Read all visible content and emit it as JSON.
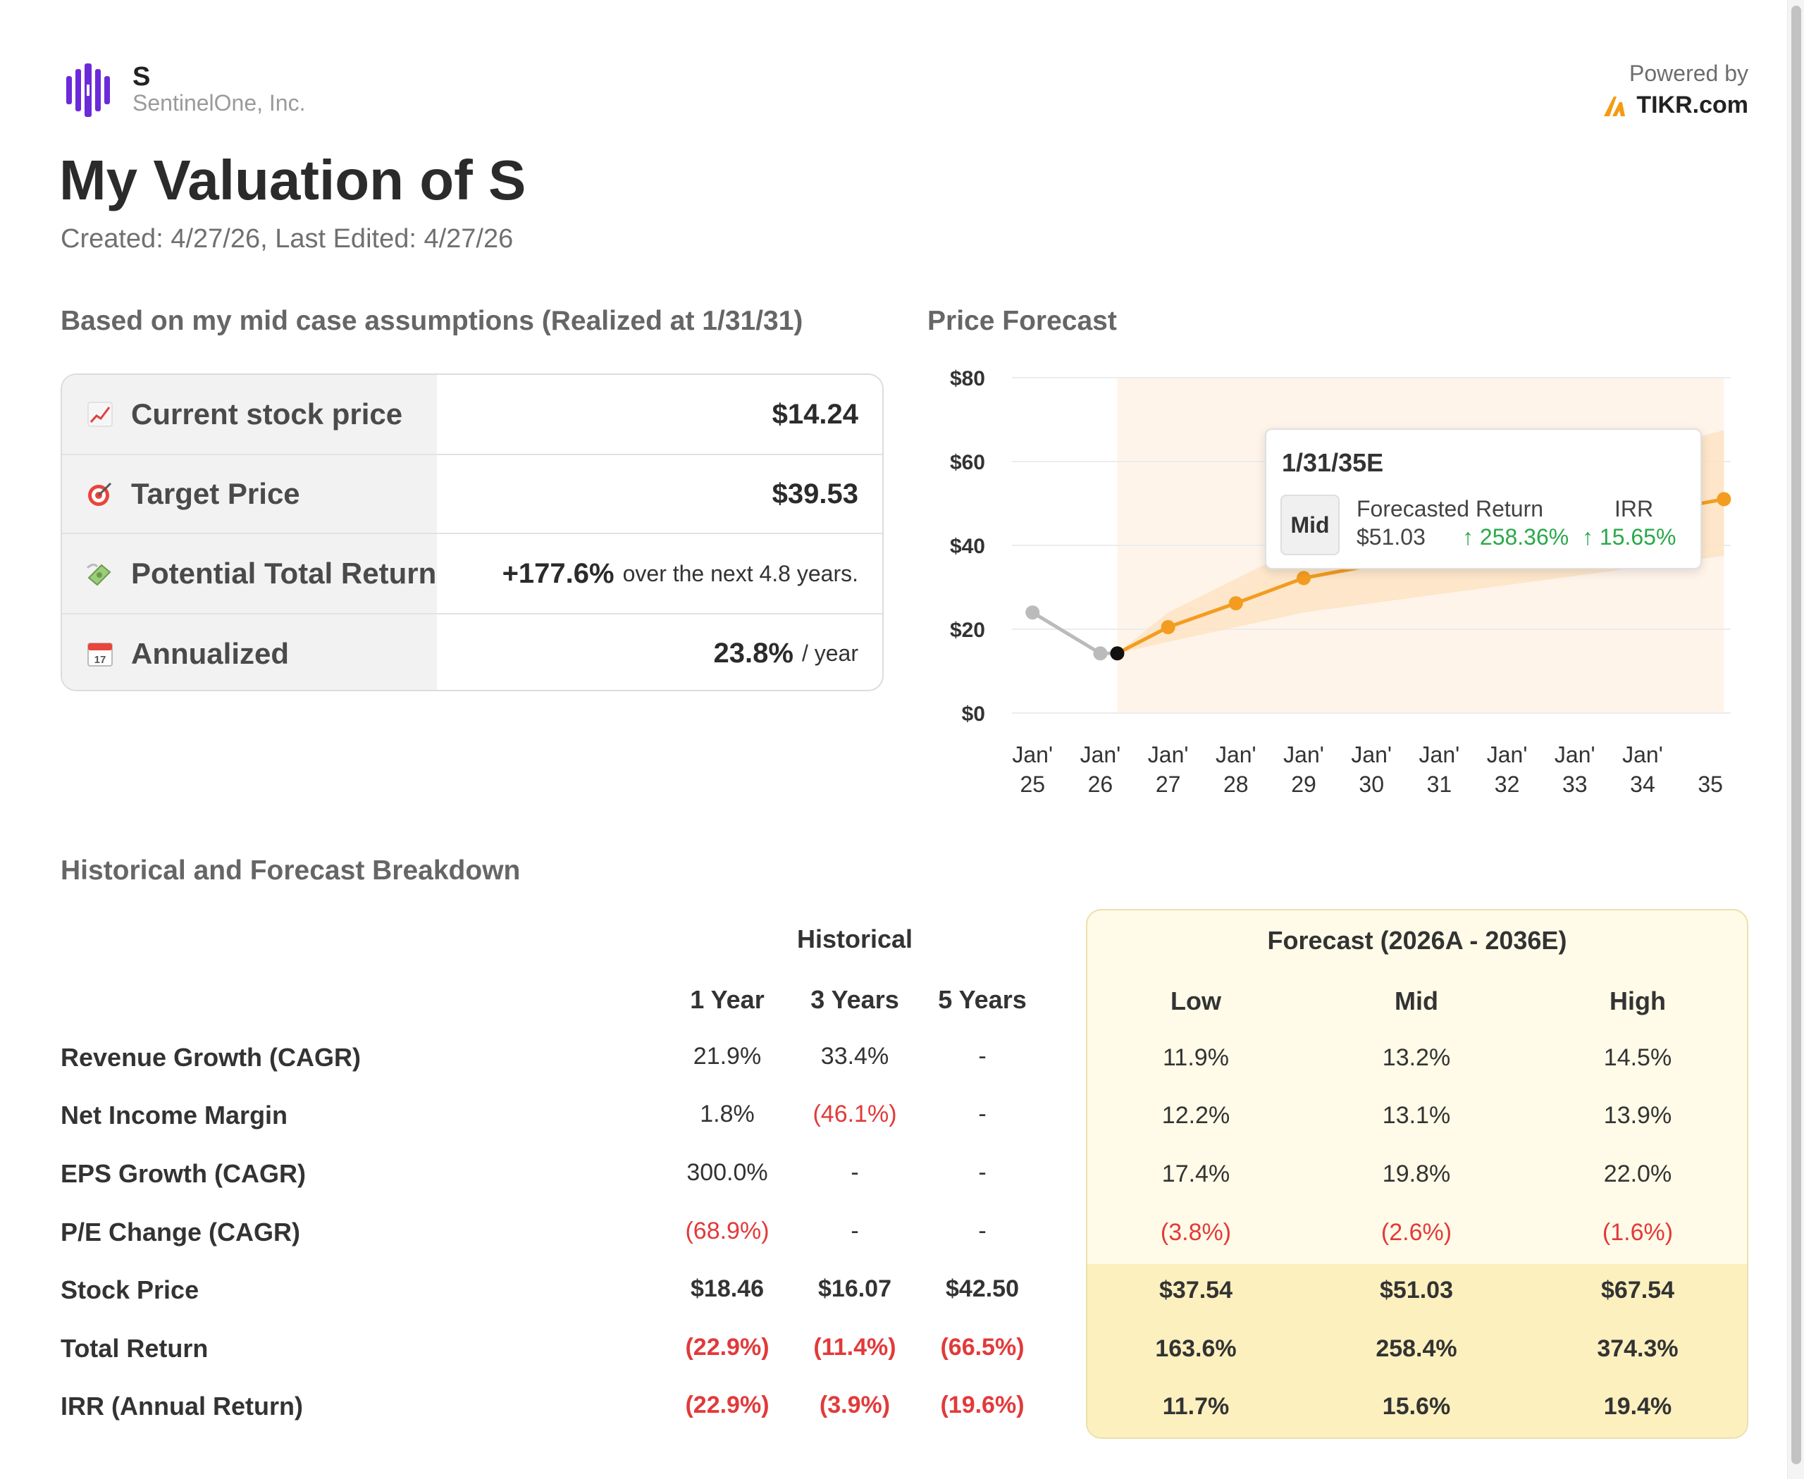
{
  "header": {
    "ticker": "S",
    "company": "SentinelOne, Inc.",
    "powered_by": "Powered by",
    "brand": "TIKR.com",
    "brand_color": "#f39c12",
    "logo_color": "#6b2bd9"
  },
  "page": {
    "title": "My Valuation of S",
    "dates": "Created: 4/27/26, Last Edited: 4/27/26"
  },
  "summary": {
    "heading": "Based on my mid case assumptions (Realized at 1/31/31)",
    "rows": [
      {
        "icon": "chart-increasing-icon",
        "label": "Current stock price",
        "value": "$14.24",
        "suffix": ""
      },
      {
        "icon": "target-icon",
        "label": "Target Price",
        "value": "$39.53",
        "suffix": ""
      },
      {
        "icon": "money-wings-icon",
        "label": "Potential Total Return",
        "value": "+177.6%",
        "suffix": "over the next 4.8 years."
      },
      {
        "icon": "calendar-icon",
        "label": "Annualized",
        "value": "23.8%",
        "suffix": "/ year"
      }
    ]
  },
  "chart_data": {
    "type": "line",
    "title": "Price Forecast",
    "yticks": [
      "$0",
      "$20",
      "$40",
      "$60",
      "$80"
    ],
    "ylim": [
      0,
      80
    ],
    "xticks": [
      {
        "top": "Jan'",
        "bottom": "25"
      },
      {
        "top": "Jan'",
        "bottom": "26"
      },
      {
        "top": "Jan'",
        "bottom": "27"
      },
      {
        "top": "Jan'",
        "bottom": "28"
      },
      {
        "top": "Jan'",
        "bottom": "29"
      },
      {
        "top": "Jan'",
        "bottom": "30"
      },
      {
        "top": "Jan'",
        "bottom": "31"
      },
      {
        "top": "Jan'",
        "bottom": "32"
      },
      {
        "top": "Jan'",
        "bottom": "33"
      },
      {
        "top": "Jan'",
        "bottom": "34"
      },
      {
        "top": "",
        "bottom": "35"
      }
    ],
    "historical": {
      "name": "Historical",
      "color": "#bbbbbb",
      "x": [
        2025.0,
        2026.0
      ],
      "y": [
        24.0,
        14.24
      ]
    },
    "current": {
      "x": 2026.25,
      "y": 14.24,
      "color": "#111111"
    },
    "forecast": {
      "name": "Mid",
      "color": "#f39c1f",
      "x": [
        2027.0,
        2028.0,
        2029.0,
        2035.2
      ],
      "y": [
        20.5,
        26.2,
        32.2,
        51.03
      ]
    },
    "band": {
      "color": "#fde3c4",
      "x": [
        2026.25,
        2027.0,
        2029.0,
        2035.2
      ],
      "low": [
        14.24,
        17.0,
        24.0,
        37.5
      ],
      "high": [
        14.24,
        24.0,
        40.0,
        67.5
      ]
    },
    "shaded_region": {
      "from": 2026.25,
      "to": 2035.2,
      "color": "#fff4ea"
    },
    "tooltip": {
      "date": "1/31/35E",
      "case": "Mid",
      "return_label": "Forecasted Return",
      "price": "$51.03",
      "return_value": "↑ 258.36%",
      "irr_label": "IRR",
      "irr_value": "↑ 15.65%"
    }
  },
  "breakdown": {
    "heading": "Historical and Forecast Breakdown",
    "historical_label": "Historical",
    "forecast_label": "Forecast (2026A - 2036E)",
    "hist_cols": [
      "1 Year",
      "3 Years",
      "5 Years"
    ],
    "fc_cols": [
      "Low",
      "Mid",
      "High"
    ],
    "rows": [
      {
        "label": "Revenue Growth (CAGR)",
        "bold": false,
        "hist": [
          "21.9%",
          "33.4%",
          "-"
        ],
        "hist_neg": [
          false,
          false,
          false
        ],
        "fc": [
          "11.9%",
          "13.2%",
          "14.5%"
        ],
        "fc_neg": [
          false,
          false,
          false
        ]
      },
      {
        "label": "Net Income Margin",
        "bold": false,
        "hist": [
          "1.8%",
          "(46.1%)",
          "-"
        ],
        "hist_neg": [
          false,
          true,
          false
        ],
        "fc": [
          "12.2%",
          "13.1%",
          "13.9%"
        ],
        "fc_neg": [
          false,
          false,
          false
        ]
      },
      {
        "label": "EPS Growth (CAGR)",
        "bold": false,
        "hist": [
          "300.0%",
          "-",
          "-"
        ],
        "hist_neg": [
          false,
          false,
          false
        ],
        "fc": [
          "17.4%",
          "19.8%",
          "22.0%"
        ],
        "fc_neg": [
          false,
          false,
          false
        ]
      },
      {
        "label": "P/E Change (CAGR)",
        "bold": false,
        "hist": [
          "(68.9%)",
          "-",
          "-"
        ],
        "hist_neg": [
          true,
          false,
          false
        ],
        "fc": [
          "(3.8%)",
          "(2.6%)",
          "(1.6%)"
        ],
        "fc_neg": [
          true,
          true,
          true
        ]
      },
      {
        "label": "Stock Price",
        "bold": true,
        "hist": [
          "$18.46",
          "$16.07",
          "$42.50"
        ],
        "hist_neg": [
          false,
          false,
          false
        ],
        "fc": [
          "$37.54",
          "$51.03",
          "$67.54"
        ],
        "fc_neg": [
          false,
          false,
          false
        ]
      },
      {
        "label": "Total Return",
        "bold": true,
        "hist": [
          "(22.9%)",
          "(11.4%)",
          "(66.5%)"
        ],
        "hist_neg": [
          true,
          true,
          true
        ],
        "fc": [
          "163.6%",
          "258.4%",
          "374.3%"
        ],
        "fc_neg": [
          false,
          false,
          false
        ]
      },
      {
        "label": "IRR (Annual Return)",
        "bold": true,
        "hist": [
          "(22.9%)",
          "(3.9%)",
          "(19.6%)"
        ],
        "hist_neg": [
          true,
          true,
          true
        ],
        "fc": [
          "11.7%",
          "15.6%",
          "19.4%"
        ],
        "fc_neg": [
          false,
          false,
          false
        ]
      }
    ]
  }
}
